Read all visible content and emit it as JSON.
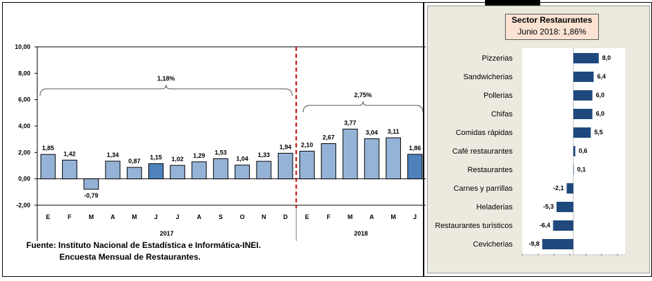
{
  "chart_data": [
    {
      "type": "bar",
      "categories": [
        "E",
        "F",
        "M",
        "A",
        "M",
        "J",
        "J",
        "A",
        "S",
        "O",
        "N",
        "D",
        "E",
        "F",
        "M",
        "A",
        "M",
        "J"
      ],
      "groups": [
        {
          "label": "2017",
          "count": 12
        },
        {
          "label": "2018",
          "count": 6
        }
      ],
      "values": [
        1.85,
        1.42,
        -0.79,
        1.34,
        0.87,
        1.15,
        1.02,
        1.29,
        1.53,
        1.04,
        1.33,
        1.94,
        2.1,
        2.67,
        3.77,
        3.04,
        3.11,
        1.86
      ],
      "value_labels": [
        "1,85",
        "1,42",
        "-0,79",
        "1,34",
        "0,87",
        "1,15",
        "1,02",
        "1,29",
        "1,53",
        "1,04",
        "1,33",
        "1,94",
        "2,10",
        "2,67",
        "3,77",
        "3,04",
        "3,11",
        "1,86"
      ],
      "highlighted": [
        5,
        17
      ],
      "yticks": [
        "10,00",
        "8,00",
        "6,00",
        "4,00",
        "2,00",
        "0,00",
        "-2,00"
      ],
      "ylim": [
        -2,
        10
      ],
      "annotations": [
        {
          "text": "1,18%",
          "span": "2017"
        },
        {
          "text": "2,75%",
          "span": "2018"
        }
      ],
      "colors": {
        "bar": "#95B3D7",
        "highlight": "#4F81BD",
        "divider": "#C00000"
      }
    },
    {
      "type": "bar",
      "orientation": "horizontal",
      "title": "Sector Restaurantes",
      "subtitle": "Junio 2018: 1,86%",
      "categories": [
        "Pizzerias",
        "Sandwicherias",
        "Pollerias",
        "Chifas",
        "Comidas rápidas",
        "Café restaurantes",
        "Restaurantes",
        "Carnes y parrillas",
        "Heladerias",
        "Restaurantes turísticos",
        "Cevicherias"
      ],
      "values": [
        8.0,
        6.4,
        6.0,
        6.0,
        5.5,
        0.6,
        0.1,
        -2.1,
        -5.3,
        -6.4,
        -9.8
      ],
      "value_labels": [
        "8,0",
        "6,4",
        "6,0",
        "6,0",
        "5,5",
        "0,6",
        "0,1",
        "-2,1",
        "-5,3",
        "-6,4",
        "-9,8"
      ],
      "colors": {
        "bar": "#1F497D"
      }
    }
  ],
  "source": {
    "line1": "Fuente: Instituto Nacional de Estadística e Informática-INEI.",
    "line2": "Encuesta Mensual de  Restaurantes."
  }
}
